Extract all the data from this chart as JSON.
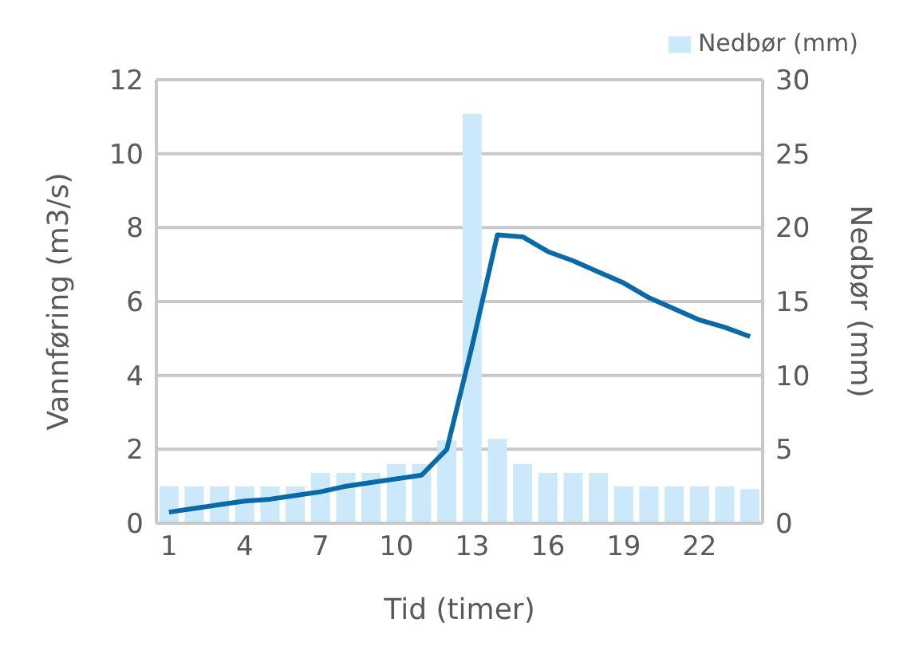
{
  "chart_data": {
    "type": "bar",
    "xlabel": "Tid (timer)",
    "ylabel": "Vannføring (m3/s)",
    "y2label": "Nedbør (mm)",
    "categories": [
      "1",
      null,
      null,
      "4",
      null,
      null,
      "7",
      null,
      null,
      "10",
      null,
      null,
      "13",
      null,
      null,
      "16",
      null,
      null,
      "19",
      null,
      null,
      "22",
      null,
      null
    ],
    "series": [
      {
        "name": "Nedbør (mm)",
        "axis": "y2",
        "color": "#cce9fb",
        "values": [
          2.5,
          2.5,
          2.5,
          2.5,
          2.5,
          2.5,
          3.4,
          3.4,
          3.4,
          4.0,
          4.0,
          5.6,
          27.7,
          5.7,
          4.0,
          3.4,
          3.4,
          3.4,
          2.5,
          2.5,
          2.5,
          2.5,
          2.5,
          2.3
        ]
      },
      {
        "type": "line",
        "color": "#0a6aa8",
        "values": [
          0.3,
          0.4,
          0.5,
          0.6,
          0.65,
          0.75,
          0.85,
          1.0,
          1.1,
          1.2,
          1.3,
          2.0,
          4.8,
          7.8,
          7.75,
          7.35,
          7.1,
          6.8,
          6.5,
          6.1,
          5.8,
          5.5,
          5.3,
          5.05
        ]
      }
    ],
    "ylim": [
      0,
      12
    ],
    "yticks": [
      0,
      2,
      4,
      6,
      8,
      10,
      12
    ],
    "y2lim": [
      0,
      30
    ],
    "y2ticks": [
      0,
      5,
      10,
      15,
      20,
      25,
      30
    ],
    "grid": "y",
    "legend": "top right",
    "marker": "none"
  }
}
